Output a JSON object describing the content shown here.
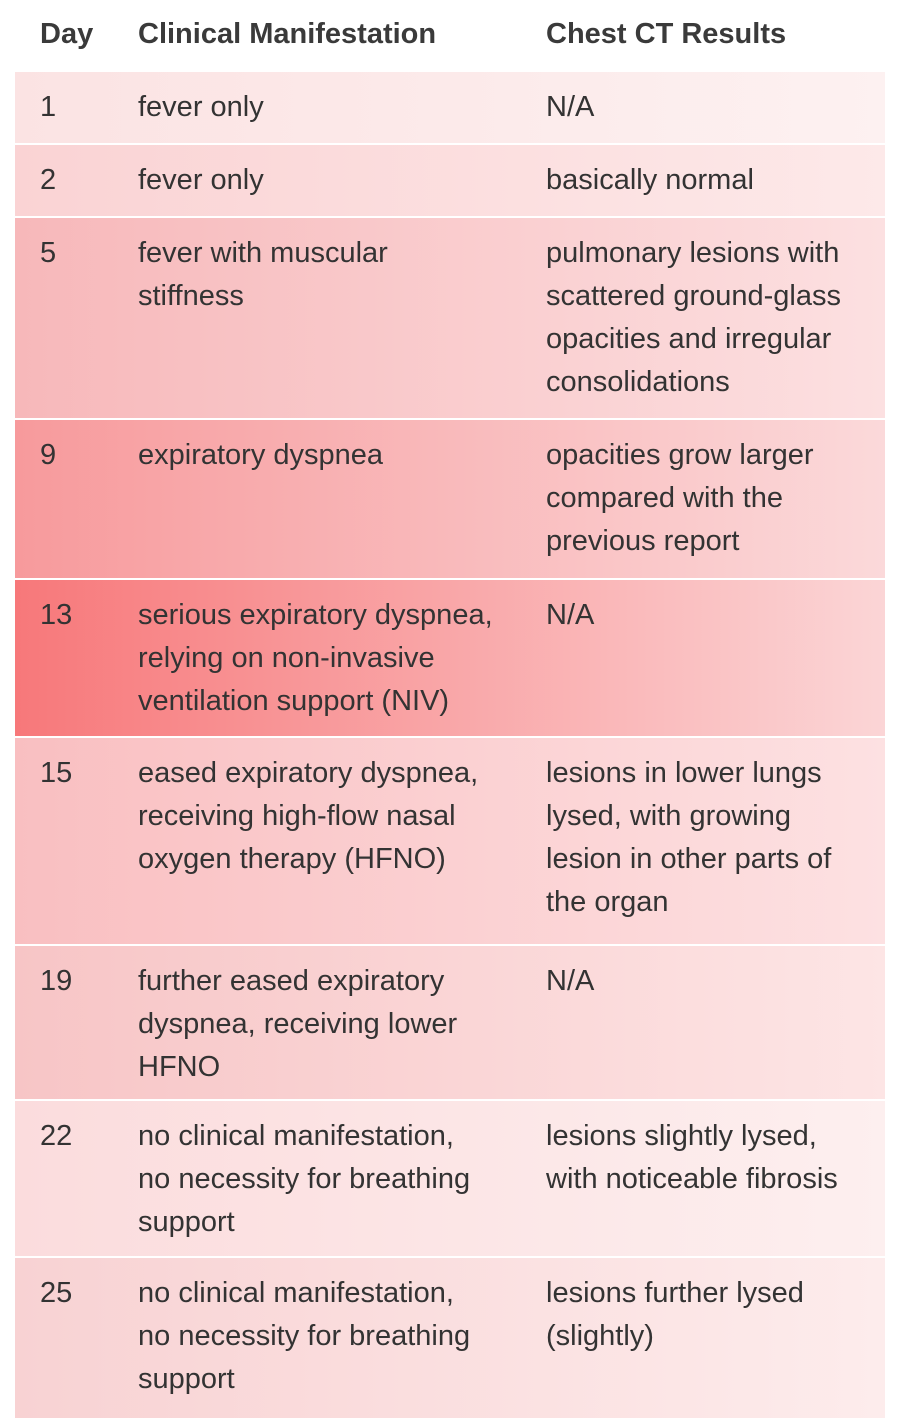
{
  "table": {
    "header": [
      "Day",
      "Clinical Manifestation",
      "Chest CT Results"
    ],
    "rows": [
      [
        [
          "1"
        ],
        [
          "fever only"
        ],
        [
          "N/A"
        ]
      ],
      [
        [
          "2"
        ],
        [
          "fever only"
        ],
        [
          "basically normal"
        ]
      ],
      [
        [
          "5"
        ],
        [
          "fever with muscular",
          "stiffness"
        ],
        [
          "pulmonary lesions with",
          "scattered ground-glass",
          "opacities and irregular",
          "consolidations"
        ]
      ],
      [
        [
          "9"
        ],
        [
          "expiratory dyspnea"
        ],
        [
          "opacities grow larger",
          "compared with the",
          "previous report"
        ]
      ],
      [
        [
          "13"
        ],
        [
          "serious expiratory dyspnea,",
          "relying on non-invasive",
          "ventilation support (NIV)"
        ],
        [
          "N/A"
        ]
      ],
      [
        [
          "15"
        ],
        [
          "eased expiratory dyspnea,",
          "receiving high-flow nasal",
          "oxygen therapy (HFNO)"
        ],
        [
          "lesions in lower lungs",
          "lysed, with growing",
          "lesion in other parts of",
          "the organ"
        ]
      ],
      [
        [
          "19"
        ],
        [
          "further eased expiratory",
          "dyspnea, receiving lower",
          "HFNO"
        ],
        [
          "N/A"
        ]
      ],
      [
        [
          "22"
        ],
        [
          "no clinical manifestation,",
          "no necessity for breathing",
          "support"
        ],
        [
          "lesions slightly lysed,",
          "with noticeable fibrosis"
        ]
      ],
      [
        [
          "25"
        ],
        [
          "no clinical manifestation,",
          "no necessity for breathing",
          "support"
        ],
        [
          "lesions further lysed",
          "(slightly)"
        ]
      ]
    ]
  }
}
